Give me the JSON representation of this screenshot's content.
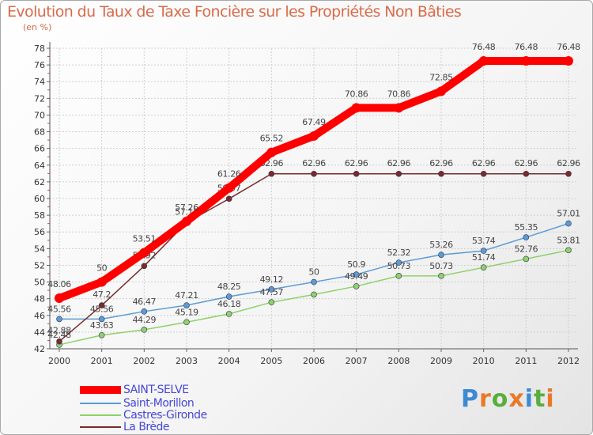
{
  "chart_data": {
    "type": "line",
    "title": "Evolution du Taux de Taxe Foncière sur les Propriétés Non Bâties",
    "unit_label": "(en %)",
    "xlabel": "",
    "ylabel": "",
    "x": [
      "2000",
      "2001",
      "2002",
      "2003",
      "2004",
      "2005",
      "2006",
      "2007",
      "2008",
      "2009",
      "2010",
      "2011",
      "2012"
    ],
    "ylim": [
      42,
      78
    ],
    "y_ticks": [
      42,
      44,
      46,
      48,
      50,
      52,
      54,
      56,
      58,
      60,
      62,
      64,
      66,
      68,
      70,
      72,
      74,
      76,
      78
    ],
    "grid": true,
    "legend_position": "bottom-left",
    "series": [
      {
        "name": "Saint-Morillon",
        "color": "#5b9bd5",
        "values": [
          45.56,
          45.56,
          46.47,
          47.21,
          48.25,
          49.12,
          50,
          50.9,
          52.32,
          53.26,
          53.74,
          55.35,
          57.01
        ],
        "labels": [
          "45.56",
          "45.56",
          "46.47",
          "47.21",
          "48.25",
          "49.12",
          "50",
          "50.9",
          "52.32",
          "53.26",
          "53.74",
          "55.35",
          "57.01"
        ]
      },
      {
        "name": "Castres-Gironde",
        "color": "#8fd16a",
        "values": [
          42.48,
          43.63,
          44.29,
          45.19,
          46.18,
          47.57,
          48.5,
          49.49,
          50.73,
          50.73,
          51.74,
          52.76,
          53.81
        ],
        "labels": [
          "42.48",
          "43.63",
          "44.29",
          "45.19",
          "46.18",
          "47.57",
          "",
          "49.49",
          "50.73",
          "50.73",
          "51.74",
          "52.76",
          "53.81"
        ]
      },
      {
        "name": "La Brède",
        "color": "#7a2b2b",
        "values": [
          42.88,
          47.2,
          51.92,
          57.12,
          59.97,
          62.96,
          62.96,
          62.96,
          62.96,
          62.96,
          62.96,
          62.96,
          62.96
        ],
        "labels": [
          "42.88",
          "47.2",
          "51.92",
          "57.12",
          "59.97",
          "62.96",
          "62.96",
          "62.96",
          "62.96",
          "62.96",
          "62.96",
          "62.96",
          "62.96"
        ]
      },
      {
        "name": "SAINT-SELVE",
        "color": "#ff0000",
        "values": [
          48.06,
          50,
          53.51,
          57.26,
          61.26,
          65.52,
          67.49,
          70.86,
          70.86,
          72.85,
          76.48,
          76.48,
          76.48
        ],
        "labels": [
          "48.06",
          "50",
          "53.51",
          "57.26",
          "61.26",
          "65.52",
          "67.49",
          "70.86",
          "70.86",
          "72.85",
          "76.48",
          "76.48",
          "76.48"
        ]
      }
    ]
  },
  "legend": [
    {
      "label": "SAINT-SELVE",
      "color": "#ff0000",
      "thickness": 10
    },
    {
      "label": "Saint-Morillon",
      "color": "#5b9bd5",
      "thickness": 2
    },
    {
      "label": "Castres-Gironde",
      "color": "#8fd16a",
      "thickness": 2
    },
    {
      "label": "La Brède",
      "color": "#7a2b2b",
      "thickness": 2
    }
  ],
  "logo": {
    "letters": [
      "P",
      "r",
      "o",
      "x",
      "i",
      "t",
      "i"
    ]
  }
}
